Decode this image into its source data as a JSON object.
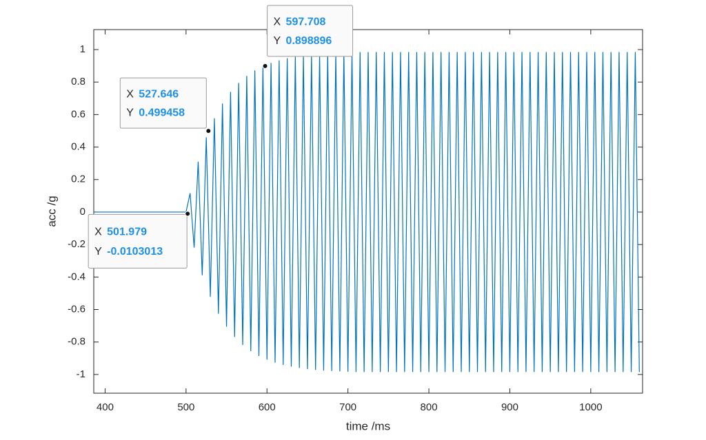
{
  "chart_data": {
    "type": "line",
    "xlabel": "time /ms",
    "ylabel": "acc /g",
    "color": "#0072bd",
    "x": [
      385,
      500,
      505,
      510,
      515,
      520,
      525,
      530,
      535,
      540,
      545,
      550,
      555,
      560,
      565,
      570,
      575,
      580,
      585,
      590,
      595,
      600,
      605,
      610,
      615,
      620,
      625,
      630,
      635,
      640,
      645,
      650,
      655,
      660,
      665,
      670,
      675,
      680,
      685,
      690,
      695,
      700,
      705,
      710,
      715,
      720,
      725,
      730,
      735,
      740,
      745,
      750,
      755,
      760,
      765,
      770,
      775,
      780,
      785,
      790,
      795,
      800,
      805,
      810,
      815,
      820,
      825,
      830,
      835,
      840,
      845,
      850,
      855,
      860,
      865,
      870,
      875,
      880,
      885,
      890,
      895,
      900,
      905,
      910,
      915,
      920,
      925,
      930,
      935,
      940,
      945,
      950,
      955,
      960,
      965,
      970,
      975,
      980,
      985,
      990,
      995,
      1000,
      1005,
      1010,
      1015,
      1020,
      1025,
      1030,
      1035,
      1040,
      1045,
      1050,
      1055,
      1060
    ],
    "values": [
      0,
      0,
      0.116,
      -0.219,
      0.31,
      -0.389,
      0.46,
      -0.522,
      0.577,
      -0.626,
      0.668,
      -0.706,
      0.74,
      -0.769,
      0.795,
      -0.818,
      0.838,
      -0.856,
      0.872,
      -0.886,
      0.898,
      -0.909,
      0.918,
      -0.927,
      0.934,
      -0.941,
      0.947,
      -0.952,
      0.956,
      -0.96,
      0.964,
      -0.967,
      0.97,
      -0.972,
      0.974,
      -0.976,
      0.978,
      -0.979,
      0.98,
      -0.981,
      0.982,
      -0.983,
      0.985,
      -0.985,
      0.985,
      -0.985,
      0.985,
      -0.985,
      0.985,
      -0.985,
      0.985,
      -0.985,
      0.985,
      -0.985,
      0.985,
      -0.985,
      0.985,
      -0.985,
      0.985,
      -0.985,
      0.985,
      -0.985,
      0.985,
      -0.985,
      0.985,
      -0.985,
      0.985,
      -0.985,
      0.985,
      -0.985,
      0.985,
      -0.985,
      0.985,
      -0.985,
      0.985,
      -0.985,
      0.985,
      -0.985,
      0.985,
      -0.985,
      0.985,
      -0.985,
      0.985,
      -0.985,
      0.985,
      -0.985,
      0.985,
      -0.985,
      0.985,
      -0.985,
      0.985,
      -0.985,
      0.985,
      -0.985,
      0.985,
      -0.985,
      0.985,
      -0.985,
      0.985,
      -0.985,
      0.985,
      -0.985,
      0.985,
      -0.985,
      0.985,
      -0.985,
      0.985,
      -0.985,
      0.985,
      -0.985,
      0.985,
      -0.985,
      0.985,
      -0.985
    ],
    "xlim": [
      386,
      1064
    ],
    "ylim": [
      -1.115,
      1.123
    ],
    "xticks": [
      400,
      500,
      600,
      700,
      800,
      900,
      1000
    ],
    "yticks": [
      -1,
      -0.8,
      -0.6,
      -0.4,
      -0.2,
      0,
      0.2,
      0.4,
      0.6,
      0.8,
      1
    ],
    "datatip_x_label": "X",
    "datatip_y_label": "Y",
    "datatips": [
      {
        "x": 501.979,
        "y": -0.0103013
      },
      {
        "x": 527.646,
        "y": 0.499458
      },
      {
        "x": 597.708,
        "y": 0.898896
      }
    ]
  }
}
